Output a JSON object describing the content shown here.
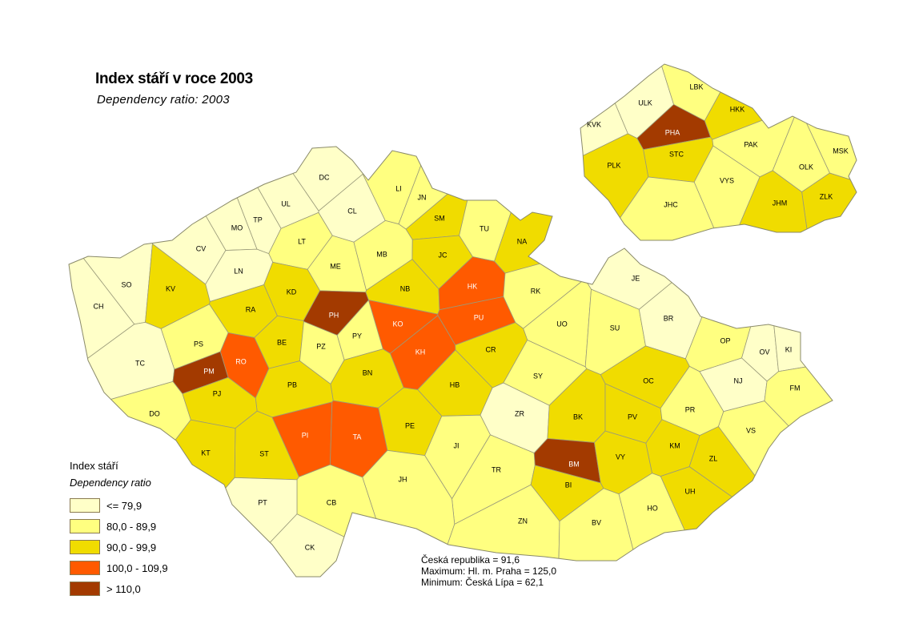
{
  "title": "Index stáří v roce 2003",
  "subtitle": "Dependency ratio: 2003",
  "legend": {
    "title": "Index stáří",
    "subtitle": "Dependency ratio",
    "classes": [
      {
        "label": "<= 79,9",
        "color": "#FFFFC8"
      },
      {
        "label": "80,0 - 89,9",
        "color": "#FFFF80"
      },
      {
        "label": "90,0 - 99,9",
        "color": "#F0DC00"
      },
      {
        "label": "100,0 - 109,9",
        "color": "#FF5A00"
      },
      {
        "label": "> 110,0",
        "color": "#A33A00"
      }
    ]
  },
  "stats": {
    "country": "Česká republika =  91,6",
    "maximum": "Maximum: Hl. m. Praha = 125,0",
    "minimum": "Minimum: Česká Lípa  = 62,1"
  },
  "districts": [
    {
      "code": "DC",
      "class": 0
    },
    {
      "code": "CL",
      "class": 0
    },
    {
      "code": "LI",
      "class": 1
    },
    {
      "code": "JN",
      "class": 1
    },
    {
      "code": "UL",
      "class": 0
    },
    {
      "code": "TP",
      "class": 0
    },
    {
      "code": "MO",
      "class": 0
    },
    {
      "code": "CV",
      "class": 0
    },
    {
      "code": "LT",
      "class": 1
    },
    {
      "code": "ME",
      "class": 1
    },
    {
      "code": "MB",
      "class": 1
    },
    {
      "code": "SM",
      "class": 2
    },
    {
      "code": "TU",
      "class": 1
    },
    {
      "code": "NA",
      "class": 2
    },
    {
      "code": "JC",
      "class": 2
    },
    {
      "code": "SO",
      "class": 0
    },
    {
      "code": "CH",
      "class": 0
    },
    {
      "code": "KV",
      "class": 2
    },
    {
      "code": "LN",
      "class": 0
    },
    {
      "code": "KD",
      "class": 2
    },
    {
      "code": "RA",
      "class": 2
    },
    {
      "code": "NB",
      "class": 2
    },
    {
      "code": "HK",
      "class": 3
    },
    {
      "code": "RK",
      "class": 1
    },
    {
      "code": "JE",
      "class": 0
    },
    {
      "code": "PH",
      "class": 4
    },
    {
      "code": "KO",
      "class": 3
    },
    {
      "code": "PU",
      "class": 3
    },
    {
      "code": "UO",
      "class": 1
    },
    {
      "code": "SU",
      "class": 1
    },
    {
      "code": "BR",
      "class": 0
    },
    {
      "code": "OP",
      "class": 1
    },
    {
      "code": "OV",
      "class": 0
    },
    {
      "code": "KI",
      "class": 0
    },
    {
      "code": "PS",
      "class": 1
    },
    {
      "code": "BE",
      "class": 2
    },
    {
      "code": "PZ",
      "class": 1
    },
    {
      "code": "PY",
      "class": 1
    },
    {
      "code": "KH",
      "class": 3
    },
    {
      "code": "CR",
      "class": 2
    },
    {
      "code": "RO",
      "class": 3
    },
    {
      "code": "TC",
      "class": 0
    },
    {
      "code": "PM",
      "class": 4
    },
    {
      "code": "BN",
      "class": 2
    },
    {
      "code": "SY",
      "class": 1
    },
    {
      "code": "NJ",
      "class": 0
    },
    {
      "code": "FM",
      "class": 1
    },
    {
      "code": "OC",
      "class": 2
    },
    {
      "code": "HB",
      "class": 2
    },
    {
      "code": "PB",
      "class": 2
    },
    {
      "code": "PJ",
      "class": 2
    },
    {
      "code": "DO",
      "class": 1
    },
    {
      "code": "ZR",
      "class": 0
    },
    {
      "code": "BK",
      "class": 2
    },
    {
      "code": "PV",
      "class": 2
    },
    {
      "code": "PR",
      "class": 1
    },
    {
      "code": "VS",
      "class": 1
    },
    {
      "code": "PE",
      "class": 2
    },
    {
      "code": "PI",
      "class": 3
    },
    {
      "code": "TA",
      "class": 3
    },
    {
      "code": "JI",
      "class": 1
    },
    {
      "code": "KM",
      "class": 2
    },
    {
      "code": "ZL",
      "class": 2
    },
    {
      "code": "ST",
      "class": 2
    },
    {
      "code": "KT",
      "class": 2
    },
    {
      "code": "TR",
      "class": 1
    },
    {
      "code": "BM",
      "class": 4
    },
    {
      "code": "VY",
      "class": 2
    },
    {
      "code": "BI",
      "class": 2
    },
    {
      "code": "UH",
      "class": 2
    },
    {
      "code": "JH",
      "class": 1
    },
    {
      "code": "CB",
      "class": 1
    },
    {
      "code": "PT",
      "class": 0
    },
    {
      "code": "HO",
      "class": 1
    },
    {
      "code": "ZN",
      "class": 1
    },
    {
      "code": "BV",
      "class": 1
    },
    {
      "code": "CK",
      "class": 0
    }
  ],
  "regions": [
    {
      "code": "ULK",
      "class": 0
    },
    {
      "code": "LBK",
      "class": 1
    },
    {
      "code": "HKK",
      "class": 2
    },
    {
      "code": "KVK",
      "class": 0
    },
    {
      "code": "PHA",
      "class": 4
    },
    {
      "code": "STC",
      "class": 2
    },
    {
      "code": "PAK",
      "class": 1
    },
    {
      "code": "MSK",
      "class": 1
    },
    {
      "code": "OLK",
      "class": 1
    },
    {
      "code": "PLK",
      "class": 2
    },
    {
      "code": "VYS",
      "class": 1
    },
    {
      "code": "ZLK",
      "class": 2
    },
    {
      "code": "JHM",
      "class": 2
    },
    {
      "code": "JHC",
      "class": 1
    }
  ]
}
